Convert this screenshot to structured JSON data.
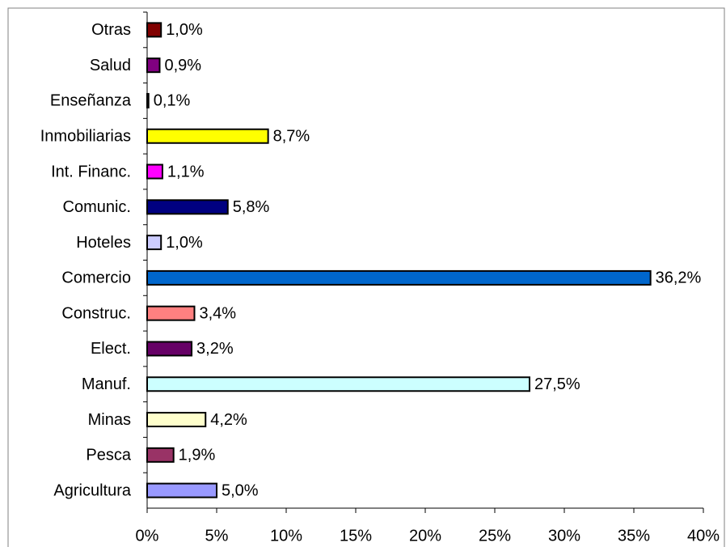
{
  "chart_data": {
    "type": "hbar",
    "categories": [
      "Otras",
      "Salud",
      "Enseñanza",
      "Inmobiliarias",
      "Int. Financ.",
      "Comunic.",
      "Hoteles",
      "Comercio",
      "Construc.",
      "Elect.",
      "Manuf.",
      "Minas",
      "Pesca",
      "Agricultura"
    ],
    "values": [
      1.0,
      0.9,
      0.1,
      8.7,
      1.1,
      5.8,
      1.0,
      36.2,
      3.4,
      3.2,
      27.5,
      4.2,
      1.9,
      5.0
    ],
    "value_labels": [
      "1,0%",
      "0,9%",
      "0,1%",
      "8,7%",
      "1,1%",
      "5,8%",
      "1,0%",
      "36,2%",
      "3,4%",
      "3,2%",
      "27,5%",
      "4,2%",
      "1,9%",
      "5,0%"
    ],
    "colors": [
      "#800000",
      "#800080",
      "#000080",
      "#ffff00",
      "#ff00ff",
      "#000080",
      "#ccccff",
      "#0066cc",
      "#ff8080",
      "#660066",
      "#ccffff",
      "#ffffcc",
      "#993366",
      "#9999ff"
    ],
    "xlim": [
      0,
      40
    ],
    "xticks": [
      {
        "value": 0,
        "label": "0%"
      },
      {
        "value": 5,
        "label": "5%"
      },
      {
        "value": 10,
        "label": "10%"
      },
      {
        "value": 15,
        "label": "15%"
      },
      {
        "value": 20,
        "label": "20%"
      },
      {
        "value": 25,
        "label": "25%"
      },
      {
        "value": 30,
        "label": "30%"
      },
      {
        "value": 35,
        "label": "35%"
      },
      {
        "value": 40,
        "label": "40%"
      }
    ],
    "grid": false
  }
}
